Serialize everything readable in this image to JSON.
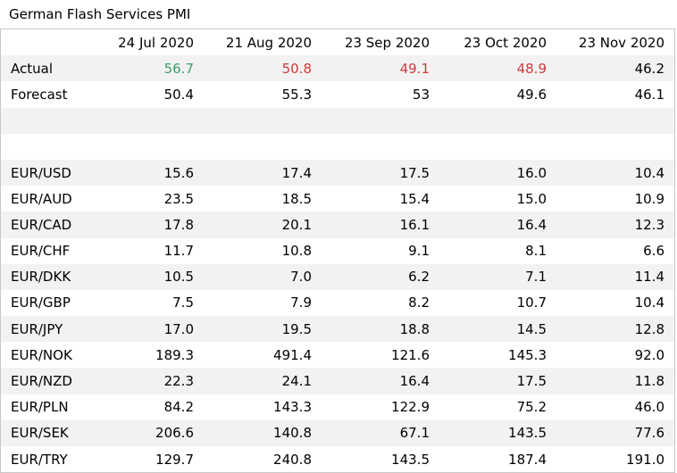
{
  "title": "German Flash Services PMI",
  "columns": [
    "",
    "24 Jul 2020",
    "21 Aug 2020",
    "23 Sep 2020",
    "23 Oct 2020",
    "23 Nov 2020"
  ],
  "colors": {
    "up": "#3b9e6a",
    "down": "#d0393b",
    "shade": "#f2f2f2"
  },
  "actual": {
    "label": "Actual",
    "values": [
      "56.7",
      "50.8",
      "49.1",
      "48.9",
      "46.2"
    ],
    "tones": [
      "up",
      "down",
      "down",
      "down",
      "none"
    ]
  },
  "forecast": {
    "label": "Forecast",
    "values": [
      "50.4",
      "55.3",
      "53",
      "49.6",
      "46.1"
    ]
  },
  "pairs": [
    {
      "label": "EUR/USD",
      "values": [
        "15.6",
        "17.4",
        "17.5",
        "16.0",
        "10.4"
      ]
    },
    {
      "label": "EUR/AUD",
      "values": [
        "23.5",
        "18.5",
        "15.4",
        "15.0",
        "10.9"
      ]
    },
    {
      "label": "EUR/CAD",
      "values": [
        "17.8",
        "20.1",
        "16.1",
        "16.4",
        "12.3"
      ]
    },
    {
      "label": "EUR/CHF",
      "values": [
        "11.7",
        "10.8",
        "9.1",
        "8.1",
        "6.6"
      ]
    },
    {
      "label": "EUR/DKK",
      "values": [
        "10.5",
        "7.0",
        "6.2",
        "7.1",
        "11.4"
      ]
    },
    {
      "label": "EUR/GBP",
      "values": [
        "7.5",
        "7.9",
        "8.2",
        "10.7",
        "10.4"
      ]
    },
    {
      "label": "EUR/JPY",
      "values": [
        "17.0",
        "19.5",
        "18.8",
        "14.5",
        "12.8"
      ]
    },
    {
      "label": "EUR/NOK",
      "values": [
        "189.3",
        "491.4",
        "121.6",
        "145.3",
        "92.0"
      ]
    },
    {
      "label": "EUR/NZD",
      "values": [
        "22.3",
        "24.1",
        "16.4",
        "17.5",
        "11.8"
      ]
    },
    {
      "label": "EUR/PLN",
      "values": [
        "84.2",
        "143.3",
        "122.9",
        "75.2",
        "46.0"
      ]
    },
    {
      "label": "EUR/SEK",
      "values": [
        "206.6",
        "140.8",
        "67.1",
        "143.5",
        "77.6"
      ]
    },
    {
      "label": "EUR/TRY",
      "values": [
        "129.7",
        "240.8",
        "143.5",
        "187.4",
        "191.0"
      ]
    }
  ]
}
